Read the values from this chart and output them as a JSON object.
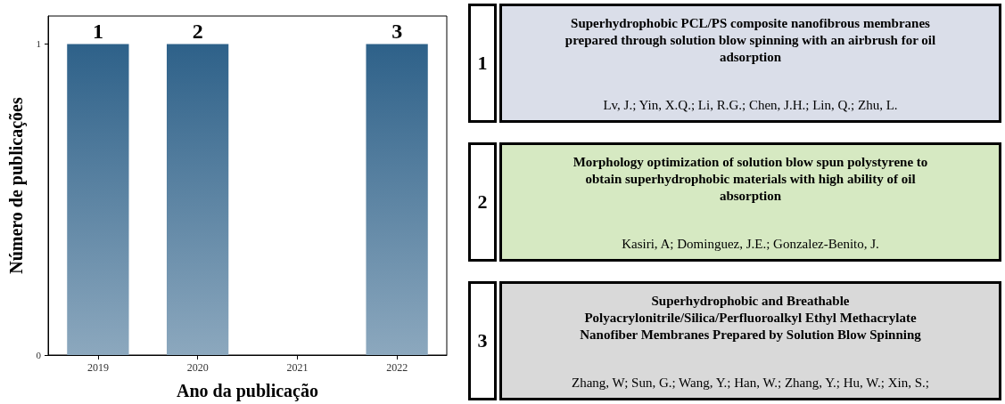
{
  "chart_data": [
    {
      "type": "bar",
      "xlabel": "Ano da publicação",
      "ylabel": "Número de publicações",
      "categories": [
        "2019",
        "2020",
        "2021",
        "2022"
      ],
      "values": [
        1,
        1,
        0,
        1
      ],
      "color": "#2e6189",
      "ylim": [
        0,
        1.09
      ],
      "yticks": [
        0,
        1
      ],
      "grid": false,
      "annotations": [
        {
          "text": "1",
          "x": "2019",
          "y": 1
        },
        {
          "text": "2",
          "x": "2020",
          "y": 1
        },
        {
          "text": "3",
          "x": "2022",
          "y": 1
        }
      ]
    },
    {
      "type": "other",
      "colors": [
        "#dadee9",
        "#d6e9c2",
        "#d9d9d9"
      ],
      "annotations": [
        "1",
        "Superhydrophobic PCL/PS composite nanofibrous membranes prepared through solution blow spinning with an airbrush for oil adsorption",
        "Lv, J.; Yin, X.Q.; Li, R.G.; Chen, J.H.; Lin, Q.; Zhu, L.",
        "2",
        "Morphology optimization of solution blow spun polystyrene to obtain superhydrophobic materials with high ability of oil absorption",
        "Kasiri, A; Dominguez, J.E.; Gonzalez-Benito, J.",
        "3",
        "Superhydrophobic and Breathable Polyacrylonitrile/Silica/Perfluoroalkyl Ethyl Methacrylate Nanofiber Membranes Prepared by Solution Blow Spinning",
        "Zhang, W; Sun, G.; Wang, Y.; Han, W.; Zhang, Y.; Hu, W.; Xin, S.;"
      ]
    }
  ]
}
